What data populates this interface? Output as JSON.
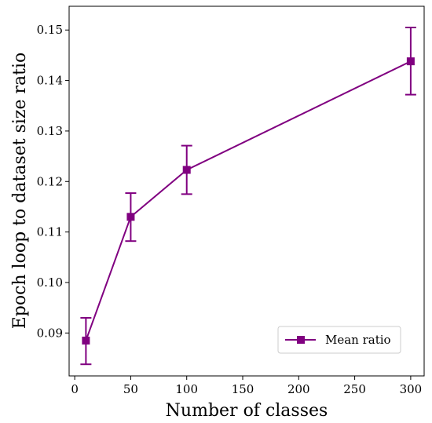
{
  "chart_data": {
    "type": "line",
    "title": "",
    "xlabel": "Number of classes",
    "ylabel": "Epoch loop to dataset size ratio",
    "xlim": [
      -5,
      312
    ],
    "ylim": [
      0.0815,
      0.1547
    ],
    "xticks": [
      0,
      50,
      100,
      150,
      200,
      250,
      300
    ],
    "xtick_labels": [
      "0",
      "50",
      "100",
      "150",
      "200",
      "250",
      "300"
    ],
    "yticks": [
      0.09,
      0.1,
      0.11,
      0.12,
      0.13,
      0.14,
      0.15
    ],
    "ytick_labels": [
      "0.09",
      "0.10",
      "0.11",
      "0.12",
      "0.13",
      "0.14",
      "0.15"
    ],
    "grid": false,
    "legend_position": "lower-right",
    "series": [
      {
        "name": "Mean ratio",
        "color": "#800080",
        "marker": "square",
        "x": [
          10,
          50,
          100,
          300
        ],
        "y": [
          0.0885,
          0.113,
          0.1223,
          0.1438
        ],
        "err_low": [
          0.0838,
          0.1082,
          0.1175,
          0.1372
        ],
        "err_high": [
          0.093,
          0.1177,
          0.1271,
          0.1505
        ]
      }
    ]
  }
}
